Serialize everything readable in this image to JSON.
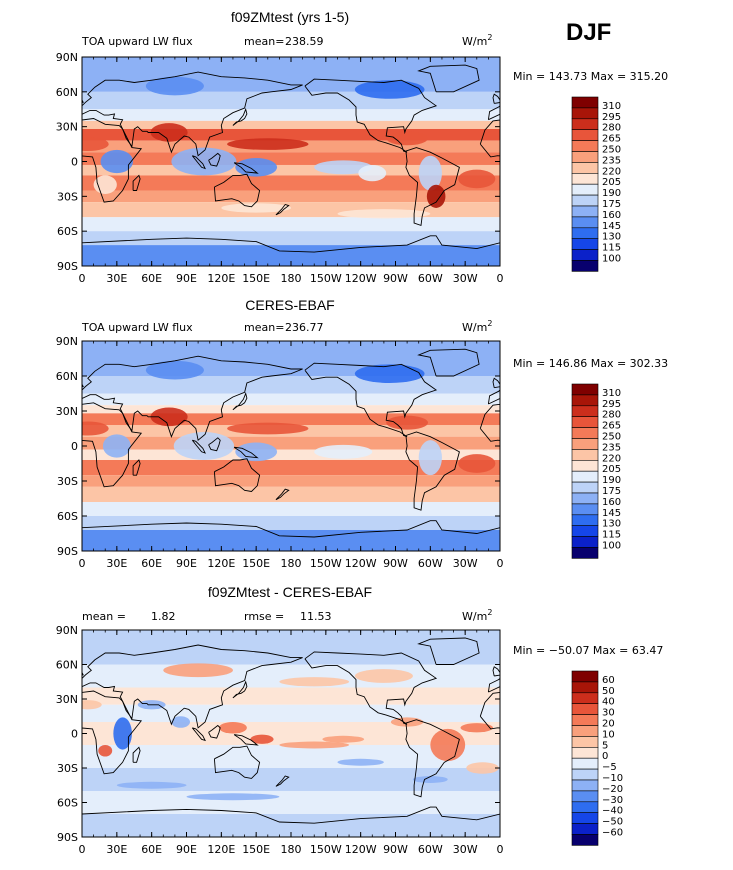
{
  "season": "DJF",
  "panels": [
    {
      "title": "f09ZMtest (yrs 1-5)",
      "left_label": "TOA upward LW flux",
      "stat_label": "mean=",
      "stat_value": "238.59",
      "extra_label": "",
      "extra_value": "",
      "units": "W/m",
      "units_sup": "2",
      "minmax": "Min = 143.73 Max = 315.20",
      "levels": [
        "310",
        "295",
        "280",
        "265",
        "250",
        "235",
        "220",
        "205",
        "190",
        "175",
        "160",
        "145",
        "130",
        "115",
        "100"
      ]
    },
    {
      "title": "CERES-EBAF",
      "left_label": "TOA upward LW flux",
      "stat_label": "mean=",
      "stat_value": "236.77",
      "extra_label": "",
      "extra_value": "",
      "units": "W/m",
      "units_sup": "2",
      "minmax": "Min = 146.86 Max = 302.33",
      "levels": [
        "310",
        "295",
        "280",
        "265",
        "250",
        "235",
        "220",
        "205",
        "190",
        "175",
        "160",
        "145",
        "130",
        "115",
        "100"
      ]
    },
    {
      "title": "f09ZMtest - CERES-EBAF",
      "left_label": "mean =",
      "stat_label": "",
      "stat_value": "1.82",
      "extra_label": "rmse =",
      "extra_value": "11.53",
      "units": "W/m",
      "units_sup": "2",
      "minmax": "Min = −50.07 Max =  63.47",
      "levels": [
        "60",
        "50",
        "40",
        "30",
        "20",
        "10",
        "5",
        "0",
        "−5",
        "−10",
        "−20",
        "−30",
        "−40",
        "−50",
        "−60"
      ]
    }
  ],
  "lat_labels": [
    "90N",
    "60N",
    "30N",
    "0",
    "30S",
    "60S",
    "90S"
  ],
  "lon_labels": [
    "0",
    "30E",
    "60E",
    "90E",
    "120E",
    "150E",
    "180",
    "150W",
    "120W",
    "90W",
    "60W",
    "30W",
    "0"
  ],
  "colors": {
    "palette": [
      "#08006e",
      "#0b21c9",
      "#1546e8",
      "#2e6df0",
      "#5a8ef2",
      "#8db1f5",
      "#bdd3f7",
      "#e4eefb",
      "#fde5d6",
      "#fcc5a6",
      "#f9a07c",
      "#f47a58",
      "#e8553a",
      "#cc2e1c",
      "#a81508",
      "#7f0000"
    ]
  }
}
